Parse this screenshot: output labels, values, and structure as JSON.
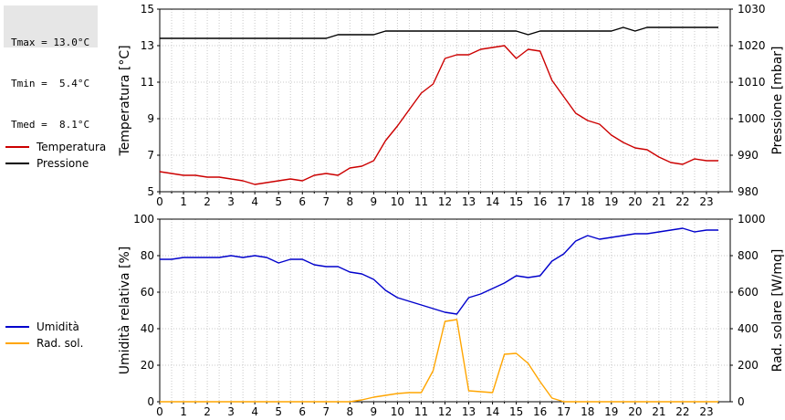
{
  "stats": {
    "tmax": "Tmax = 13.0°C",
    "tmin": "Tmin =  5.4°C",
    "tmed": "Tmed =  8.1°C"
  },
  "legend_top": [
    {
      "label": "Temperatura",
      "color": "#cc0000"
    },
    {
      "label": "Pressione",
      "color": "#000000"
    }
  ],
  "legend_bottom": [
    {
      "label": "Umidità",
      "color": "#0000cc"
    },
    {
      "label": "Rad. sol.",
      "color": "#ffa500"
    }
  ],
  "chart_data": [
    {
      "type": "line",
      "ylabel": "Temperatura [°C]",
      "y2label": "Pressione [mbar]",
      "xlim": [
        0,
        24
      ],
      "ylim": [
        5,
        15
      ],
      "y2lim": [
        980,
        1030
      ],
      "x_ticks": [
        "0",
        "1",
        "2",
        "3",
        "4",
        "5",
        "6",
        "7",
        "8",
        "9",
        "10",
        "11",
        "12",
        "13",
        "14",
        "15",
        "16",
        "17",
        "18",
        "19",
        "20",
        "21",
        "22",
        "23"
      ],
      "y_ticks": [
        "5",
        "7",
        "9",
        "11",
        "13",
        "15"
      ],
      "y2_ticks": [
        "980",
        "990",
        "1000",
        "1010",
        "1020",
        "1030"
      ],
      "grid": true,
      "series": [
        {
          "name": "Temperatura",
          "axis": "left",
          "color": "#cc0000",
          "x": [
            0,
            0.5,
            1,
            1.5,
            2,
            2.5,
            3,
            3.5,
            4,
            4.5,
            5,
            5.5,
            6,
            6.5,
            7,
            7.5,
            8,
            8.5,
            9,
            9.5,
            10,
            10.5,
            11,
            11.5,
            12,
            12.5,
            13,
            13.5,
            14,
            14.5,
            15,
            15.5,
            16,
            16.5,
            17,
            17.5,
            18,
            18.5,
            19,
            19.5,
            20,
            20.5,
            21,
            21.5,
            22,
            22.5,
            23,
            23.5
          ],
          "values": [
            6.1,
            6.0,
            5.9,
            5.9,
            5.8,
            5.8,
            5.7,
            5.6,
            5.4,
            5.5,
            5.6,
            5.7,
            5.6,
            5.9,
            6.0,
            5.9,
            6.3,
            6.4,
            6.7,
            7.8,
            8.6,
            9.5,
            10.4,
            10.9,
            12.3,
            12.5,
            12.5,
            12.8,
            12.9,
            13.0,
            12.3,
            12.8,
            12.7,
            11.1,
            10.2,
            9.3,
            8.9,
            8.7,
            8.1,
            7.7,
            7.4,
            7.3,
            6.9,
            6.6,
            6.5,
            6.8,
            6.7,
            6.7
          ]
        },
        {
          "name": "Pressione",
          "axis": "right",
          "color": "#000000",
          "x": [
            0,
            7,
            7.5,
            9,
            9.5,
            15,
            15.5,
            16,
            19,
            19.5,
            20,
            20.5,
            23.5
          ],
          "values": [
            1022,
            1022,
            1023,
            1023,
            1024,
            1024,
            1023,
            1024,
            1024,
            1025,
            1024,
            1025,
            1025
          ]
        }
      ]
    },
    {
      "type": "line",
      "ylabel": "Umidità relativa [%]",
      "y2label": "Rad. solare [W/mq]",
      "xlim": [
        0,
        24
      ],
      "ylim": [
        0,
        100
      ],
      "y2lim": [
        0,
        1000
      ],
      "x_ticks": [
        "0",
        "1",
        "2",
        "3",
        "4",
        "5",
        "6",
        "7",
        "8",
        "9",
        "10",
        "11",
        "12",
        "13",
        "14",
        "15",
        "16",
        "17",
        "18",
        "19",
        "20",
        "21",
        "22",
        "23"
      ],
      "y_ticks": [
        "0",
        "20",
        "40",
        "60",
        "80",
        "100"
      ],
      "y2_ticks": [
        "0",
        "200",
        "400",
        "600",
        "800",
        "1000"
      ],
      "grid": true,
      "series": [
        {
          "name": "Umidità",
          "axis": "left",
          "color": "#0000cc",
          "x": [
            0,
            0.5,
            1,
            1.5,
            2,
            2.5,
            3,
            3.5,
            4,
            4.5,
            5,
            5.5,
            6,
            6.5,
            7,
            7.5,
            8,
            8.5,
            9,
            9.5,
            10,
            10.5,
            11,
            11.5,
            12,
            12.5,
            13,
            13.5,
            14,
            14.5,
            15,
            15.5,
            16,
            16.5,
            17,
            17.5,
            18,
            18.5,
            19,
            19.5,
            20,
            20.5,
            21,
            21.5,
            22,
            22.5,
            23,
            23.5
          ],
          "values": [
            78,
            78,
            79,
            79,
            79,
            79,
            80,
            79,
            80,
            79,
            76,
            78,
            78,
            75,
            74,
            74,
            71,
            70,
            67,
            61,
            57,
            55,
            53,
            51,
            49,
            48,
            57,
            59,
            62,
            65,
            69,
            68,
            69,
            77,
            81,
            88,
            91,
            89,
            90,
            91,
            92,
            92,
            93,
            94,
            95,
            93,
            94,
            94
          ]
        },
        {
          "name": "Rad. sol.",
          "axis": "right",
          "color": "#ffa500",
          "x": [
            0,
            1,
            2,
            3,
            4,
            5,
            6,
            7,
            8,
            8.5,
            9,
            9.5,
            10,
            10.5,
            11,
            11.5,
            12,
            12.5,
            13,
            13.5,
            14,
            14.5,
            15,
            15.5,
            16,
            16.5,
            17,
            18,
            19,
            20,
            21,
            22,
            23,
            23.5
          ],
          "values": [
            0,
            0,
            0,
            0,
            0,
            0,
            0,
            0,
            0,
            10,
            25,
            35,
            45,
            50,
            50,
            170,
            440,
            450,
            60,
            55,
            50,
            260,
            265,
            210,
            110,
            20,
            0,
            0,
            0,
            0,
            0,
            0,
            0,
            0
          ]
        }
      ]
    }
  ]
}
